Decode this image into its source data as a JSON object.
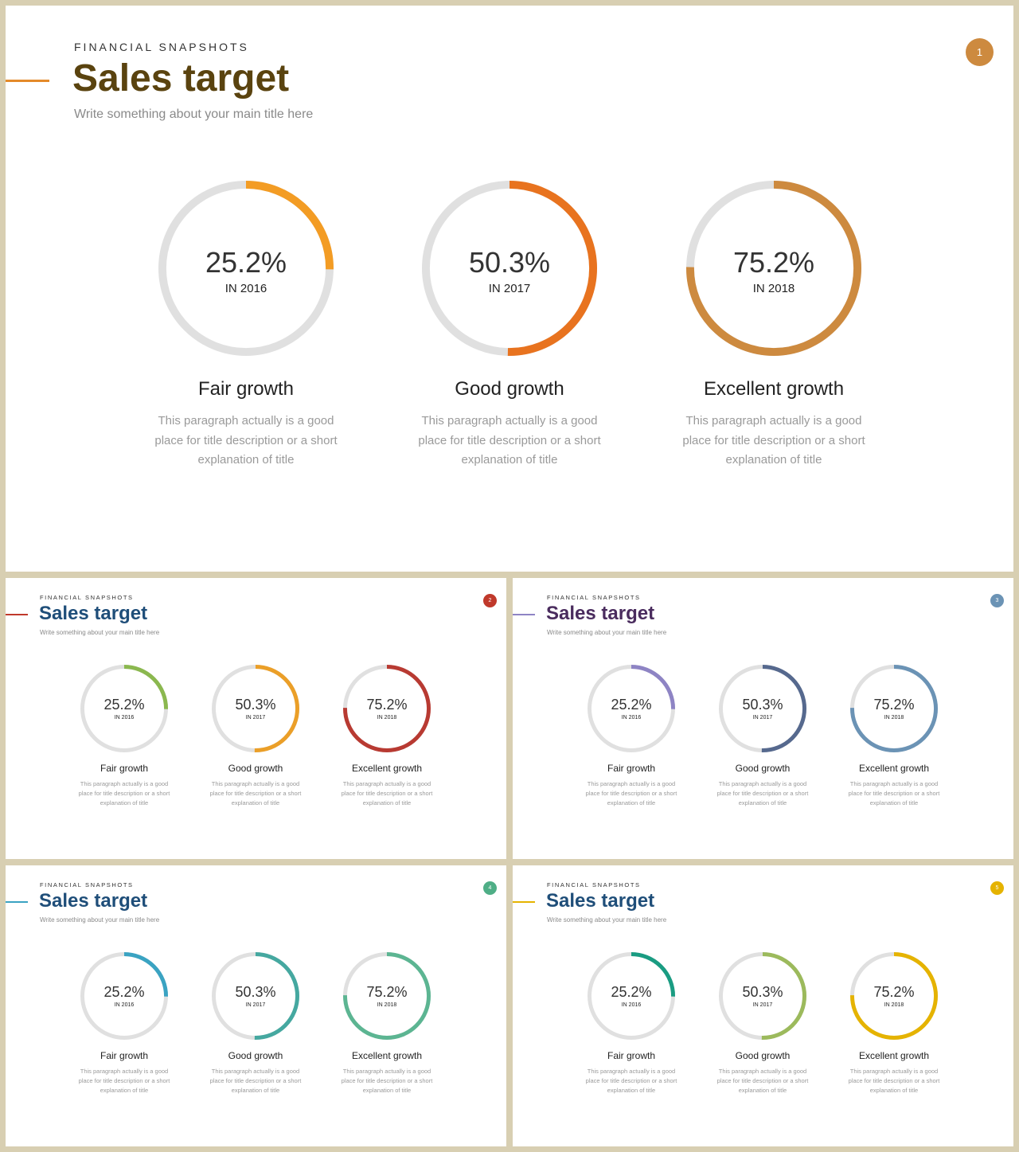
{
  "slides": [
    {
      "kicker": "FINANCIAL SNAPSHOTS",
      "title": "Sales target",
      "subtitle": "Write something about your main title here",
      "badge": "1",
      "title_color": "#5a430f",
      "accent_color": "#e48a2a",
      "badge_color": "#cd8a3f"
    },
    {
      "kicker": "FINANCIAL SNAPSHOTS",
      "title": "Sales target",
      "subtitle": "Write something about your main title here",
      "badge": "2",
      "title_color": "#1f4e79",
      "accent_color": "#c0392b",
      "badge_color": "#c0392b"
    },
    {
      "kicker": "FINANCIAL SNAPSHOTS",
      "title": "Sales target",
      "subtitle": "Write something about your main title here",
      "badge": "3",
      "title_color": "#4a2c5e",
      "accent_color": "#8e84c4",
      "badge_color": "#6b93b5"
    },
    {
      "kicker": "FINANCIAL SNAPSHOTS",
      "title": "Sales target",
      "subtitle": "Write something about your main title here",
      "badge": "4",
      "title_color": "#1f4e79",
      "accent_color": "#3aa3c2",
      "badge_color": "#4fae86"
    },
    {
      "kicker": "FINANCIAL SNAPSHOTS",
      "title": "Sales target",
      "subtitle": "Write something about your main title here",
      "badge": "5",
      "title_color": "#1f4e79",
      "accent_color": "#e5b300",
      "badge_color": "#e5b300"
    }
  ],
  "chart_data": [
    {
      "type": "pie",
      "categories": [
        "Fair growth",
        "Good growth",
        "Excellent growth"
      ],
      "values": [
        25.2,
        50.3,
        75.2
      ],
      "labels": [
        "25.2%",
        "50.3%",
        "75.2%"
      ],
      "years": [
        "IN 2016",
        "IN 2017",
        "IN 2018"
      ],
      "descriptions": [
        "This paragraph  actually is a good place for title description or a short explanation of title",
        "This paragraph  actually is a good place for title description or a short explanation of title",
        "This paragraph  actually is a good place for title description or a short explanation of title"
      ],
      "colors": [
        "#f39c24",
        "#e8731f",
        "#cd8a3f"
      ],
      "track_color": "#e0e0e0"
    },
    {
      "type": "pie",
      "categories": [
        "Fair growth",
        "Good growth",
        "Excellent growth"
      ],
      "values": [
        25.2,
        50.3,
        75.2
      ],
      "labels": [
        "25.2%",
        "50.3%",
        "75.2%"
      ],
      "years": [
        "IN 2016",
        "IN 2017",
        "IN 2018"
      ],
      "descriptions": [
        "This paragraph  actually is a good place for title description or a short explanation of title",
        "This paragraph  actually is a good place for title description or a short explanation of title",
        "This paragraph  actually is a good place for title description or a short explanation of title"
      ],
      "colors": [
        "#8bb84f",
        "#eb9f28",
        "#b83a32"
      ],
      "track_color": "#e0e0e0"
    },
    {
      "type": "pie",
      "categories": [
        "Fair growth",
        "Good growth",
        "Excellent growth"
      ],
      "values": [
        25.2,
        50.3,
        75.2
      ],
      "labels": [
        "25.2%",
        "50.3%",
        "75.2%"
      ],
      "years": [
        "IN 2016",
        "IN 2017",
        "IN 2018"
      ],
      "descriptions": [
        "This paragraph  actually is a good place for title description or a short explanation of title",
        "This paragraph  actually is a good place for title description or a short explanation of title",
        "This paragraph  actually is a good place for title description or a short explanation of title"
      ],
      "colors": [
        "#8e84c4",
        "#56698e",
        "#6b93b5"
      ],
      "track_color": "#e0e0e0"
    },
    {
      "type": "pie",
      "categories": [
        "Fair growth",
        "Good growth",
        "Excellent growth"
      ],
      "values": [
        25.2,
        50.3,
        75.2
      ],
      "labels": [
        "25.2%",
        "50.3%",
        "75.2%"
      ],
      "years": [
        "IN 2016",
        "IN 2017",
        "IN 2018"
      ],
      "descriptions": [
        "This paragraph  actually is a good place for title description or a short explanation of title",
        "This paragraph  actually is a good place for title description or a short explanation of title",
        "This paragraph  actually is a good place for title description or a short explanation of title"
      ],
      "colors": [
        "#3aa3c2",
        "#45a8a0",
        "#5cb592"
      ],
      "track_color": "#e0e0e0"
    },
    {
      "type": "pie",
      "categories": [
        "Fair growth",
        "Good growth",
        "Excellent growth"
      ],
      "values": [
        25.2,
        50.3,
        75.2
      ],
      "labels": [
        "25.2%",
        "50.3%",
        "75.2%"
      ],
      "years": [
        "IN 2016",
        "IN 2017",
        "IN 2018"
      ],
      "descriptions": [
        "This paragraph  actually is a good place for title description or a short explanation of title",
        "This paragraph  actually is a good place for title description or a short explanation of title",
        "This paragraph  actually is a good place for title description or a short explanation of title"
      ],
      "colors": [
        "#1a9c82",
        "#9cba5c",
        "#e5b300"
      ],
      "track_color": "#e0e0e0"
    }
  ]
}
